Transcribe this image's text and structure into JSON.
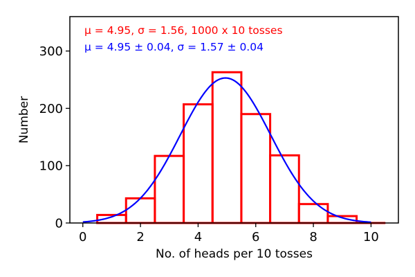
{
  "chart_data": {
    "type": "bar",
    "x": [
      1,
      2,
      3,
      4,
      5,
      6,
      7,
      8,
      9,
      10
    ],
    "values": [
      14,
      43,
      117,
      207,
      263,
      190,
      118,
      33,
      12,
      0
    ],
    "bin_edges": [
      0.5,
      1.5,
      2.5,
      3.5,
      4.5,
      5.5,
      6.5,
      7.5,
      8.5,
      9.5,
      10.5
    ],
    "fit": {
      "type": "gaussian",
      "mu": 4.95,
      "sigma": 1.57,
      "amplitude": 253
    },
    "xlabel": "No. of heads per 10 tosses",
    "ylabel": "Number",
    "xlim": [
      -0.45,
      10.95
    ],
    "ylim": [
      0,
      360
    ],
    "xticks": [
      "0",
      "2",
      "4",
      "6",
      "8",
      "10"
    ],
    "yticks": [
      "0",
      "100",
      "200",
      "300"
    ],
    "annotations": [
      {
        "text": "μ = 4.95, σ = 1.56, 1000 x 10 tosses",
        "color": "#ff0000"
      },
      {
        "text": "μ = 4.95 ± 0.04, σ = 1.57 ± 0.04",
        "color": "#0000ff"
      }
    ],
    "grid": false,
    "hist_color": "#ff0000",
    "fit_color": "#0000ff"
  }
}
